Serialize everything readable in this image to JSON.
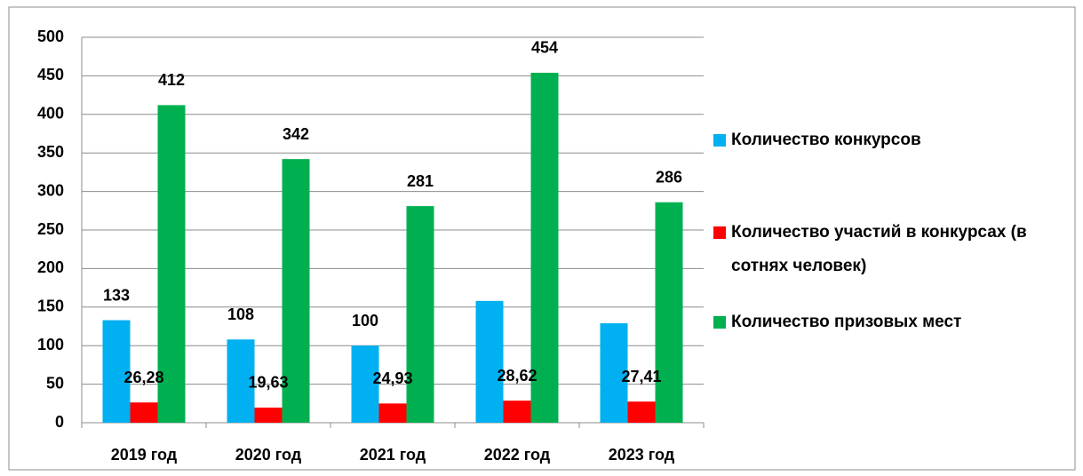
{
  "chart_data": {
    "type": "bar",
    "categories": [
      "2019 год",
      "2020 год",
      "2021 год",
      "2022 год",
      "2023 год"
    ],
    "series": [
      {
        "name": "Количество конкурсов",
        "color": "#00b0f0",
        "values": [
          133,
          108,
          100,
          158,
          129
        ],
        "value_labels": [
          "133",
          "108",
          "100",
          null,
          null
        ]
      },
      {
        "name": "Количество участий в конкурсах (в сотнях человек)",
        "color": "#ff0000",
        "values": [
          26.28,
          19.63,
          24.93,
          28.62,
          27.41
        ],
        "value_labels": [
          "26,28",
          "19,63",
          "24,93",
          "28,62",
          "27,41"
        ]
      },
      {
        "name": "Количество призовых мест",
        "color": "#00b050",
        "values": [
          412,
          342,
          281,
          454,
          286
        ],
        "value_labels": [
          "412",
          "342",
          "281",
          "454",
          "286"
        ]
      }
    ],
    "ylim": [
      0,
      500
    ],
    "yticks": [
      0,
      50,
      100,
      150,
      200,
      250,
      300,
      350,
      400,
      450,
      500
    ],
    "grid": true,
    "legend": "right"
  }
}
